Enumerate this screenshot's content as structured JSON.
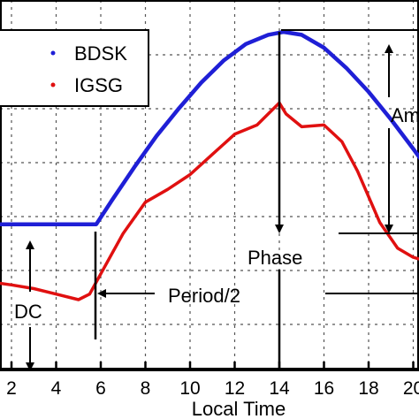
{
  "chart_data": {
    "type": "line",
    "xlabel": "Local Time",
    "ylabel": "",
    "title": "",
    "xlim": [
      1,
      20.6
    ],
    "ylim": [
      0,
      1
    ],
    "x_ticks": [
      "2",
      "4",
      "6",
      "8",
      "10",
      "12",
      "14",
      "16",
      "18",
      "20"
    ],
    "grid": true,
    "legend_position": "top-left",
    "series": [
      {
        "name": "BDSK",
        "color": "#1f1fd6",
        "style": "dotted-thick",
        "points": [
          [
            0.8,
            0.395
          ],
          [
            5.8,
            0.395
          ],
          [
            6.5,
            0.46
          ],
          [
            7.5,
            0.55
          ],
          [
            8.5,
            0.635
          ],
          [
            9.5,
            0.71
          ],
          [
            10.5,
            0.78
          ],
          [
            11.5,
            0.84
          ],
          [
            12.5,
            0.885
          ],
          [
            13.5,
            0.91
          ],
          [
            14.2,
            0.918
          ],
          [
            15,
            0.91
          ],
          [
            16,
            0.875
          ],
          [
            17,
            0.82
          ],
          [
            18,
            0.755
          ],
          [
            19,
            0.68
          ],
          [
            20,
            0.6
          ],
          [
            20.6,
            0.55
          ]
        ]
      },
      {
        "name": "IGSG",
        "color": "#e01010",
        "style": "solid",
        "points": [
          [
            0.8,
            0.24
          ],
          [
            2,
            0.23
          ],
          [
            3,
            0.22
          ],
          [
            4,
            0.205
          ],
          [
            5,
            0.19
          ],
          [
            5.5,
            0.205
          ],
          [
            6,
            0.26
          ],
          [
            7,
            0.37
          ],
          [
            8,
            0.455
          ],
          [
            9,
            0.49
          ],
          [
            10,
            0.53
          ],
          [
            11,
            0.585
          ],
          [
            12,
            0.64
          ],
          [
            13,
            0.665
          ],
          [
            13.5,
            0.695
          ],
          [
            14,
            0.725
          ],
          [
            14.3,
            0.695
          ],
          [
            15,
            0.66
          ],
          [
            16,
            0.665
          ],
          [
            16.8,
            0.62
          ],
          [
            17.5,
            0.54
          ],
          [
            18.5,
            0.4
          ],
          [
            19.3,
            0.33
          ],
          [
            20,
            0.305
          ],
          [
            20.6,
            0.295
          ]
        ]
      }
    ],
    "annotations": [
      {
        "text": "DC"
      },
      {
        "text": "Period/2"
      },
      {
        "text": "Phase"
      },
      {
        "text": "Am"
      }
    ]
  }
}
